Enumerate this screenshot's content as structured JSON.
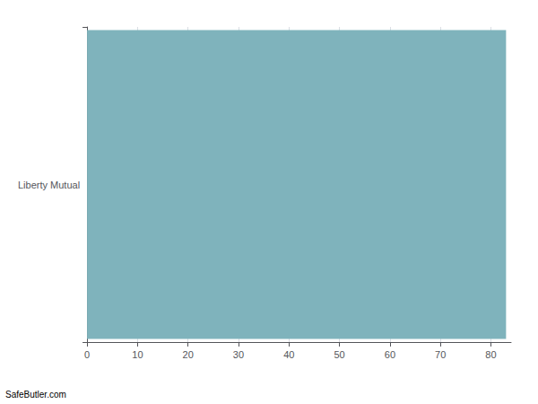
{
  "chart_data": {
    "type": "bar",
    "orientation": "horizontal",
    "categories": [
      "Liberty Mutual"
    ],
    "values": [
      83
    ],
    "color": "#7fb3bc",
    "xlim": [
      0,
      84
    ],
    "xticks": [
      0,
      10,
      20,
      30,
      40,
      50,
      60,
      70,
      80
    ],
    "grid": true,
    "annotation": "SafeButler.com"
  }
}
